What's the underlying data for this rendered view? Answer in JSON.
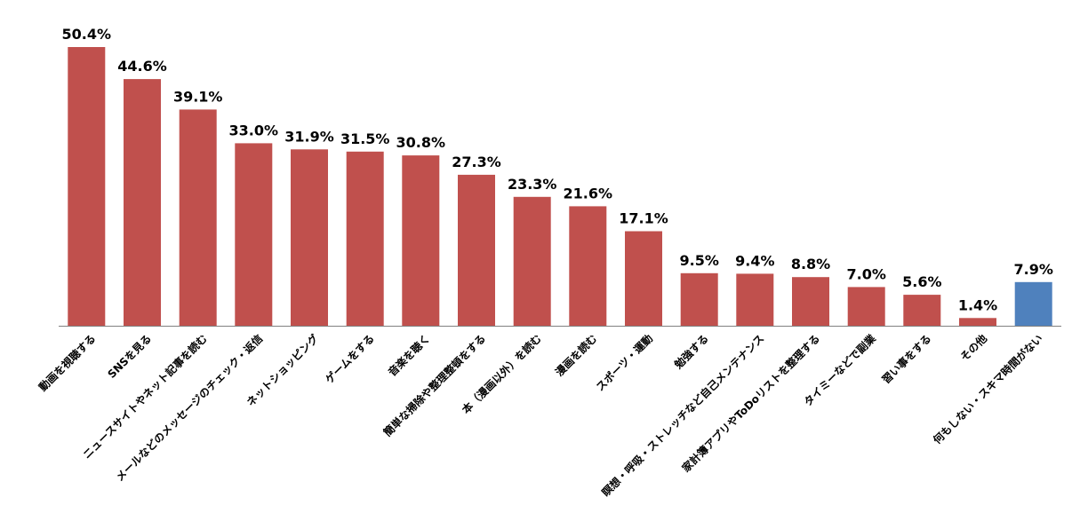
{
  "chart_data": {
    "type": "bar",
    "title": "",
    "xlabel": "",
    "ylabel": "",
    "ylim": [
      0,
      55
    ],
    "grid": false,
    "legend": "none",
    "categories": [
      "動画を視聴する",
      "SNSを見る",
      "ニュースサイトやネット記事を読む",
      "メールなどのメッセージのチェック・返信",
      "ネットショッピング",
      "ゲームをする",
      "音楽を聴く",
      "簡単な掃除や整理整頓をする",
      "本（漫画以外）を読む",
      "漫画を読む",
      "スポーツ・運動",
      "勉強する",
      "瞑想・呼吸・ストレッチなど自己メンテナンス",
      "家計簿アプリやToDoリストを整理する",
      "タイミーなどで副業",
      "習い事をする",
      "その他",
      "何もしない・スキマ時間がない"
    ],
    "values": [
      50.4,
      44.6,
      39.1,
      33.0,
      31.9,
      31.5,
      30.8,
      27.3,
      23.3,
      21.6,
      17.1,
      9.5,
      9.4,
      8.8,
      7.0,
      5.6,
      1.4,
      7.9
    ],
    "value_labels": [
      "50.4%",
      "44.6%",
      "39.1%",
      "33.0%",
      "31.9%",
      "31.5%",
      "30.8%",
      "27.3%",
      "23.3%",
      "21.6%",
      "17.1%",
      "9.5%",
      "9.4%",
      "8.8%",
      "7.0%",
      "5.6%",
      "1.4%",
      "7.9%"
    ],
    "colors": [
      "#c0504d",
      "#c0504d",
      "#c0504d",
      "#c0504d",
      "#c0504d",
      "#c0504d",
      "#c0504d",
      "#c0504d",
      "#c0504d",
      "#c0504d",
      "#c0504d",
      "#c0504d",
      "#c0504d",
      "#c0504d",
      "#c0504d",
      "#c0504d",
      "#c0504d",
      "#4f81bd"
    ],
    "axis_color": "#808080"
  }
}
